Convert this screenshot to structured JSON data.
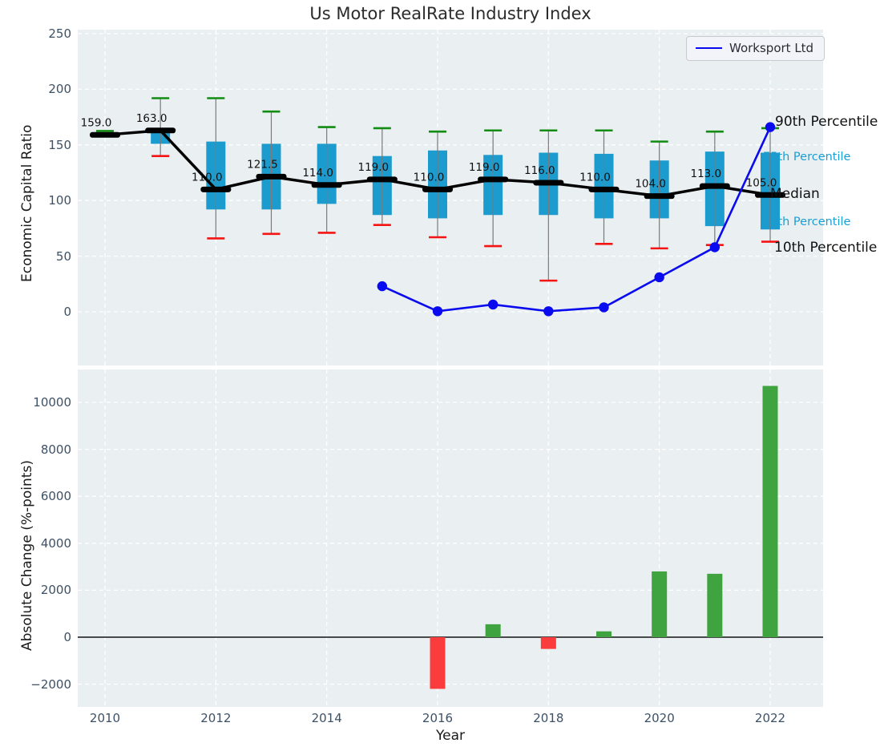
{
  "title": "Us Motor RealRate Industry Index",
  "legend": {
    "label": "Worksport Ltd"
  },
  "colors": {
    "plot_background": "#eaeff1",
    "box_fill": "#1c9bce",
    "whisker": "#7a7a7a",
    "cap_top_green": "#128c12",
    "cap_bottom_red": "#f51414",
    "median_black": "#000000",
    "line_blue": "#0a0aee",
    "bar_positive": "#3fa33f",
    "bar_negative": "#fb3c3c",
    "annotation_cyan": "#1a9fd4"
  },
  "chart_data": [
    {
      "type": "boxplot",
      "title": "Us Motor RealRate Industry Index",
      "ylabel": "Economic Capital Ratio",
      "xlabel": "Year",
      "ylim": [
        -47,
        253
      ],
      "grid": true,
      "y_ticks": [
        "250",
        "200",
        "150",
        "100",
        "50",
        "0"
      ],
      "y_tick_values": [
        250,
        200,
        150,
        100,
        50,
        0
      ],
      "x_ticks": [
        "2010",
        "2012",
        "2014",
        "2016",
        "2018",
        "2020",
        "2022"
      ],
      "x_tick_values": [
        2010,
        2012,
        2014,
        2016,
        2018,
        2020,
        2022
      ],
      "boxes": [
        {
          "year": 2010,
          "median": 159,
          "median_label": "159.0",
          "q1": 159,
          "q3": 159,
          "p10": 158,
          "p90": 162.5
        },
        {
          "year": 2011,
          "median": 163,
          "median_label": "163.0",
          "q1": 151,
          "q3": 165,
          "p10": 140,
          "p90": 192
        },
        {
          "year": 2012,
          "median": 110,
          "median_label": "110.0",
          "q1": 92,
          "q3": 153,
          "p10": 66,
          "p90": 192
        },
        {
          "year": 2013,
          "median": 121.5,
          "median_label": "121.5",
          "q1": 92,
          "q3": 151,
          "p10": 70,
          "p90": 180
        },
        {
          "year": 2014,
          "median": 114,
          "median_label": "114.0",
          "q1": 97,
          "q3": 151,
          "p10": 71,
          "p90": 166
        },
        {
          "year": 2015,
          "median": 119,
          "median_label": "119.0",
          "q1": 87,
          "q3": 140,
          "p10": 78,
          "p90": 165
        },
        {
          "year": 2016,
          "median": 110,
          "median_label": "110.0",
          "q1": 84,
          "q3": 145,
          "p10": 67,
          "p90": 162
        },
        {
          "year": 2017,
          "median": 119,
          "median_label": "119.0",
          "q1": 87,
          "q3": 141,
          "p10": 59,
          "p90": 163
        },
        {
          "year": 2018,
          "median": 116,
          "median_label": "116.0",
          "q1": 87,
          "q3": 143,
          "p10": 28,
          "p90": 163
        },
        {
          "year": 2019,
          "median": 110,
          "median_label": "110.0",
          "q1": 84,
          "q3": 142,
          "p10": 61,
          "p90": 163
        },
        {
          "year": 2020,
          "median": 104,
          "median_label": "104.0",
          "q1": 84,
          "q3": 136,
          "p10": 57,
          "p90": 153
        },
        {
          "year": 2021,
          "median": 113,
          "median_label": "113.0",
          "q1": 77,
          "q3": 144,
          "p10": 60,
          "p90": 162
        },
        {
          "year": 2022,
          "median": 105,
          "median_label": "105.0",
          "q1": 74,
          "q3": 143,
          "p10": 63,
          "p90": 165
        }
      ],
      "line_series": {
        "name": "Worksport Ltd",
        "points": [
          [
            2015,
            23
          ],
          [
            2016,
            0.5
          ],
          [
            2017,
            6.5
          ],
          [
            2018,
            0.5
          ],
          [
            2019,
            4
          ],
          [
            2020,
            31
          ],
          [
            2021,
            58
          ],
          [
            2022,
            166
          ]
        ]
      },
      "annotations": [
        {
          "text": "90th Percentile",
          "style": "black"
        },
        {
          "text": "75th Percentile",
          "style": "cyan"
        },
        {
          "text": "Median",
          "style": "black"
        },
        {
          "text": "25th Percentile",
          "style": "cyan"
        },
        {
          "text": "10th Percentile",
          "style": "black"
        }
      ]
    },
    {
      "type": "bar",
      "ylabel": "Absolute Change (%-points)",
      "xlabel": "Year",
      "ylim": [
        -2970,
        11400
      ],
      "grid": true,
      "y_ticks": [
        "10000",
        "8000",
        "6000",
        "4000",
        "2000",
        "0",
        "−2000"
      ],
      "y_tick_values": [
        10000,
        8000,
        6000,
        4000,
        2000,
        0,
        -2000
      ],
      "x_ticks": [
        "2010",
        "2012",
        "2014",
        "2016",
        "2018",
        "2020",
        "2022"
      ],
      "x_tick_values": [
        2010,
        2012,
        2014,
        2016,
        2018,
        2020,
        2022
      ],
      "bars": [
        {
          "year": 2016,
          "value": -2200
        },
        {
          "year": 2017,
          "value": 550
        },
        {
          "year": 2018,
          "value": -500
        },
        {
          "year": 2019,
          "value": 250
        },
        {
          "year": 2020,
          "value": 2800
        },
        {
          "year": 2021,
          "value": 2700
        },
        {
          "year": 2022,
          "value": 10700
        }
      ]
    }
  ]
}
